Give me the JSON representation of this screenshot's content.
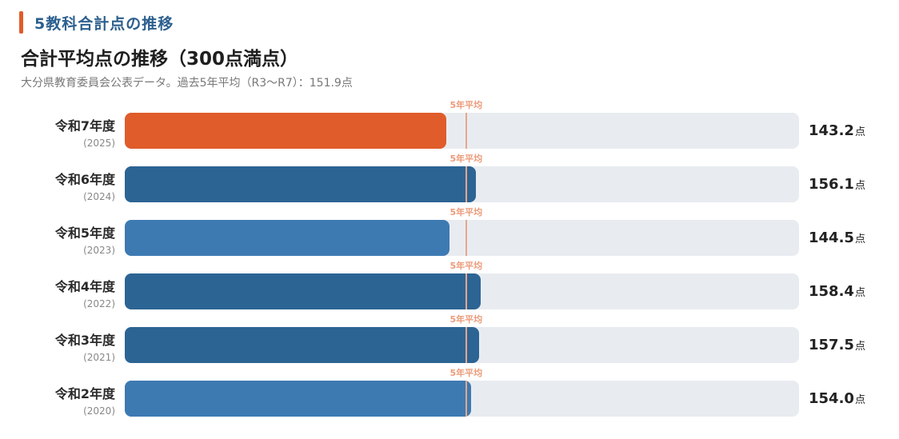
{
  "header": {
    "section_title": "5教科合計点の推移",
    "chart_title": "合計平均点の推移（300点満点）",
    "subtitle": "大分県教育委員会公表データ。過去5年平均（R3〜R7）：151.9点"
  },
  "colors": {
    "accent": "#e05c2b",
    "dark_blue": "#2c6494",
    "mid_blue": "#3d7ab2",
    "track": "#e8ecf0",
    "average_line": "#e8a68a"
  },
  "chart_data": {
    "type": "bar",
    "orientation": "horizontal",
    "title": "合計平均点の推移（300点満点）",
    "xlim": [
      0,
      300
    ],
    "unit": "点",
    "average": {
      "label": "5年平均",
      "value": 151.9
    },
    "rows": [
      {
        "label": "令和7年度",
        "year": "(2025)",
        "value": 143.2,
        "display": "143.2",
        "color": "#e05c2b"
      },
      {
        "label": "令和6年度",
        "year": "(2024)",
        "value": 156.1,
        "display": "156.1",
        "color": "#2c6494"
      },
      {
        "label": "令和5年度",
        "year": "(2023)",
        "value": 144.5,
        "display": "144.5",
        "color": "#3d7ab2"
      },
      {
        "label": "令和4年度",
        "year": "(2022)",
        "value": 158.4,
        "display": "158.4",
        "color": "#2c6494"
      },
      {
        "label": "令和3年度",
        "year": "(2021)",
        "value": 157.5,
        "display": "157.5",
        "color": "#2c6494"
      },
      {
        "label": "令和2年度",
        "year": "(2020)",
        "value": 154.0,
        "display": "154.0",
        "color": "#3d7ab2"
      }
    ]
  }
}
